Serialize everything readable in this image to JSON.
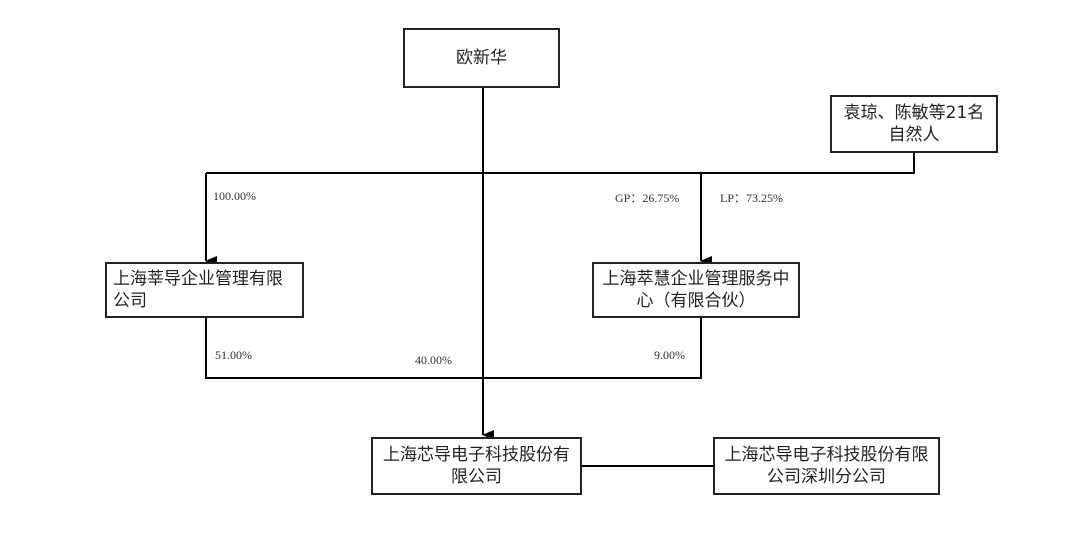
{
  "nodes": {
    "ouxinhua": "欧新华",
    "natural_persons": "袁琼、陈敏等21名自然人",
    "xindao_mgmt": "上海莘导企业管理有限公司",
    "cuihui": "上海萃慧企业管理服务中心（有限合伙）",
    "company": "上海芯导电子科技股份有限公司",
    "shenzhen_branch": "上海芯导电子科技股份有限公司深圳分公司"
  },
  "edges": {
    "ouxinhua_to_xindao": "100.00%",
    "gp": "GP：26.75%",
    "lp": "LP：73.25%",
    "xindao_to_company": "51.00%",
    "ouxinhua_to_company": "40.00%",
    "cuihui_to_company": "9.00%"
  }
}
